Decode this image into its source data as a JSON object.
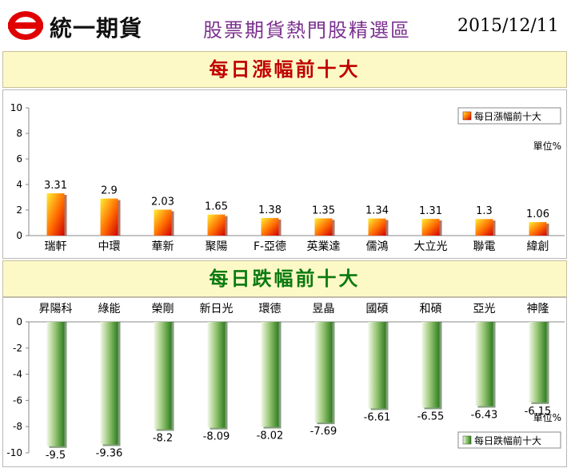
{
  "header": {
    "brand": "統一期貨",
    "title": "股票期貨熱門股精選區",
    "date": "2015/12/11"
  },
  "colors": {
    "title_purple": "#7b2f8f",
    "gain_red": "#c00000",
    "loss_green": "#0a7a10",
    "banner_bg": "#fdf9c6"
  },
  "chart_data": [
    {
      "type": "bar",
      "title": "每日漲幅前十大",
      "legend": "每日漲幅前十大",
      "legend_position": "top-right",
      "unit_label": "單位%",
      "categories": [
        "瑞軒",
        "中環",
        "華新",
        "聚陽",
        "F-亞德",
        "英業達",
        "儒鴻",
        "大立光",
        "聯電",
        "緯創"
      ],
      "values": [
        3.31,
        2.9,
        2.03,
        1.65,
        1.38,
        1.35,
        1.34,
        1.31,
        1.3,
        1.06
      ],
      "value_labels": [
        "3.31",
        "2.9",
        "2.03",
        "1.65",
        "1.38",
        "1.35",
        "1.34",
        "1.31",
        "1.3",
        "1.06"
      ],
      "yticks": [
        "0",
        "2",
        "4",
        "6",
        "8",
        "10"
      ],
      "ylim": [
        0,
        10
      ],
      "grid": false
    },
    {
      "type": "bar",
      "title": "每日跌幅前十大",
      "legend": "每日跌幅前十大",
      "legend_position": "bottom-right",
      "unit_label": "單位%",
      "categories": [
        "昇陽科",
        "綠能",
        "榮剛",
        "新日光",
        "環德",
        "昱晶",
        "國碩",
        "和碩",
        "亞光",
        "神隆"
      ],
      "values": [
        -9.5,
        -9.36,
        -8.2,
        -8.09,
        -8.02,
        -7.69,
        -6.61,
        -6.55,
        -6.43,
        -6.15
      ],
      "value_labels": [
        "-9.5",
        "-9.36",
        "-8.2",
        "-8.09",
        "-8.02",
        "-7.69",
        "-6.61",
        "-6.55",
        "-6.43",
        "-6.15"
      ],
      "yticks": [
        "0",
        "-2",
        "-4",
        "-6",
        "-8",
        "-10"
      ],
      "ylim": [
        -10,
        0
      ],
      "grid": false
    }
  ]
}
